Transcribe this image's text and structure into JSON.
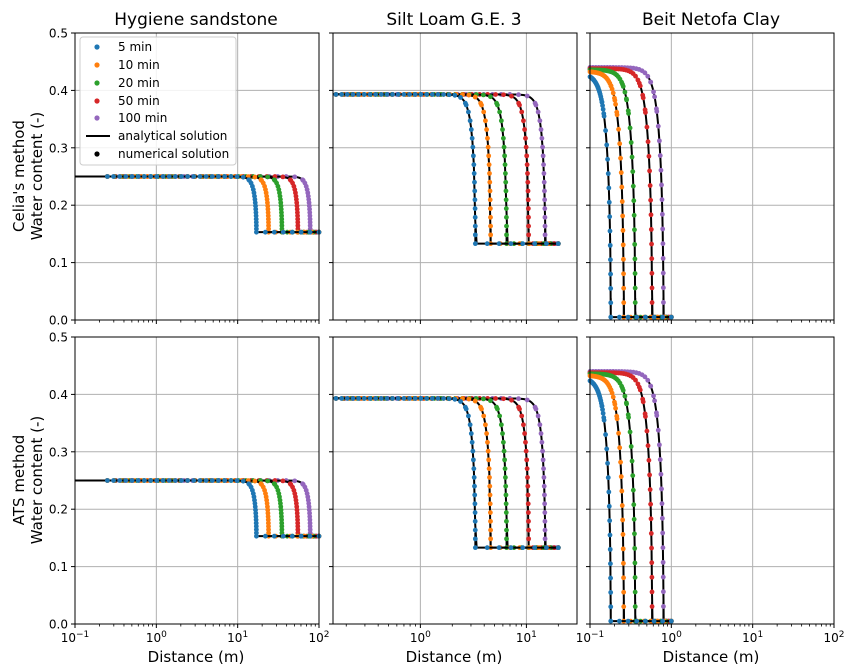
{
  "titles": [
    "Hygiene sandstone",
    "Silt Loam G.E. 3",
    "Beit Netofa Clay"
  ],
  "row_labels": [
    {
      "line1": "Celia's method",
      "line2": "Water content (-)"
    },
    {
      "line1": "ATS method",
      "line2": "Water content (-)"
    }
  ],
  "xlabel": "Distance (m)",
  "legend": {
    "placement": "upper-left of first panel",
    "series": [
      "5 min",
      "10 min",
      "20 min",
      "50 min",
      "100 min"
    ],
    "analytical": "analytical solution",
    "numerical": "numerical solution"
  },
  "colors": {
    "5 min": "#1f77b4",
    "10 min": "#ff7f0e",
    "20 min": "#2ca02c",
    "50 min": "#d62728",
    "100 min": "#9467bd",
    "analytical": "#000000",
    "grid": "#b0b0b0"
  },
  "chart_data": [
    {
      "type": "scatter",
      "panel": "row1-col1",
      "title": "Hygiene sandstone",
      "ylabel": "Celia's method Water content (-)",
      "xlabel": "",
      "xscale": "log",
      "xlim": [
        0.1,
        100
      ],
      "ylim": [
        0,
        0.5
      ],
      "grid": true,
      "theta_initial": 0.25,
      "theta_boundary": 0.153,
      "front_positions": [
        17,
        24,
        35,
        55,
        78
      ],
      "series": [
        {
          "name": "5 min"
        },
        {
          "name": "10 min"
        },
        {
          "name": "20 min"
        },
        {
          "name": "50 min"
        },
        {
          "name": "100 min"
        }
      ]
    },
    {
      "type": "scatter",
      "panel": "row1-col2",
      "title": "Silt Loam G.E. 3",
      "ylabel": "",
      "xlabel": "",
      "xscale": "log",
      "xlim": [
        0.15,
        30
      ],
      "ylim": [
        0,
        0.5
      ],
      "grid": true,
      "theta_initial": 0.393,
      "theta_boundary": 0.133,
      "front_positions": [
        3.3,
        4.6,
        6.5,
        10.5,
        15
      ],
      "series": [
        {
          "name": "5 min"
        },
        {
          "name": "10 min"
        },
        {
          "name": "20 min"
        },
        {
          "name": "50 min"
        },
        {
          "name": "100 min"
        }
      ]
    },
    {
      "type": "scatter",
      "panel": "row1-col3",
      "title": "Beit Netofa Clay",
      "ylabel": "",
      "xlabel": "",
      "xscale": "log",
      "xlim": [
        0.1,
        100
      ],
      "ylim": [
        0,
        0.5
      ],
      "grid": true,
      "theta_initial": [
        0.43,
        0.433,
        0.436,
        0.438,
        0.44
      ],
      "theta_boundary": 0.005,
      "front_positions": [
        0.18,
        0.26,
        0.36,
        0.58,
        0.8
      ],
      "series": [
        {
          "name": "5 min"
        },
        {
          "name": "10 min"
        },
        {
          "name": "20 min"
        },
        {
          "name": "50 min"
        },
        {
          "name": "100 min"
        }
      ]
    },
    {
      "type": "scatter",
      "panel": "row2-col1",
      "title": "",
      "ylabel": "ATS method Water content (-)",
      "xlabel": "Distance (m)",
      "xscale": "log",
      "xlim": [
        0.1,
        100
      ],
      "ylim": [
        0,
        0.5
      ],
      "grid": true,
      "theta_initial": 0.25,
      "theta_boundary": 0.153,
      "front_positions": [
        17,
        24,
        35,
        55,
        78
      ],
      "series": [
        {
          "name": "5 min"
        },
        {
          "name": "10 min"
        },
        {
          "name": "20 min"
        },
        {
          "name": "50 min"
        },
        {
          "name": "100 min"
        }
      ]
    },
    {
      "type": "scatter",
      "panel": "row2-col2",
      "title": "",
      "ylabel": "",
      "xlabel": "Distance (m)",
      "xscale": "log",
      "xlim": [
        0.15,
        30
      ],
      "ylim": [
        0,
        0.5
      ],
      "grid": true,
      "theta_initial": 0.393,
      "theta_boundary": 0.133,
      "front_positions": [
        3.3,
        4.6,
        6.5,
        10.5,
        15
      ],
      "series": [
        {
          "name": "5 min"
        },
        {
          "name": "10 min"
        },
        {
          "name": "20 min"
        },
        {
          "name": "50 min"
        },
        {
          "name": "100 min"
        }
      ]
    },
    {
      "type": "scatter",
      "panel": "row2-col3",
      "title": "",
      "ylabel": "",
      "xlabel": "Distance (m)",
      "xscale": "log",
      "xlim": [
        0.1,
        100
      ],
      "ylim": [
        0,
        0.5
      ],
      "grid": true,
      "theta_initial": [
        0.43,
        0.433,
        0.436,
        0.438,
        0.44
      ],
      "theta_boundary": 0.005,
      "front_positions": [
        0.18,
        0.26,
        0.36,
        0.58,
        0.8
      ],
      "series": [
        {
          "name": "5 min"
        },
        {
          "name": "10 min"
        },
        {
          "name": "20 min"
        },
        {
          "name": "50 min"
        },
        {
          "name": "100 min"
        }
      ]
    }
  ],
  "yticks": [
    "0.0",
    "0.1",
    "0.2",
    "0.3",
    "0.4",
    "0.5"
  ],
  "xtick_labels": {
    "m1": "10",
    "m1_exp": "−1",
    "0": "10",
    "0_exp": "0",
    "1": "10",
    "1_exp": "1",
    "2": "10",
    "2_exp": "2"
  }
}
